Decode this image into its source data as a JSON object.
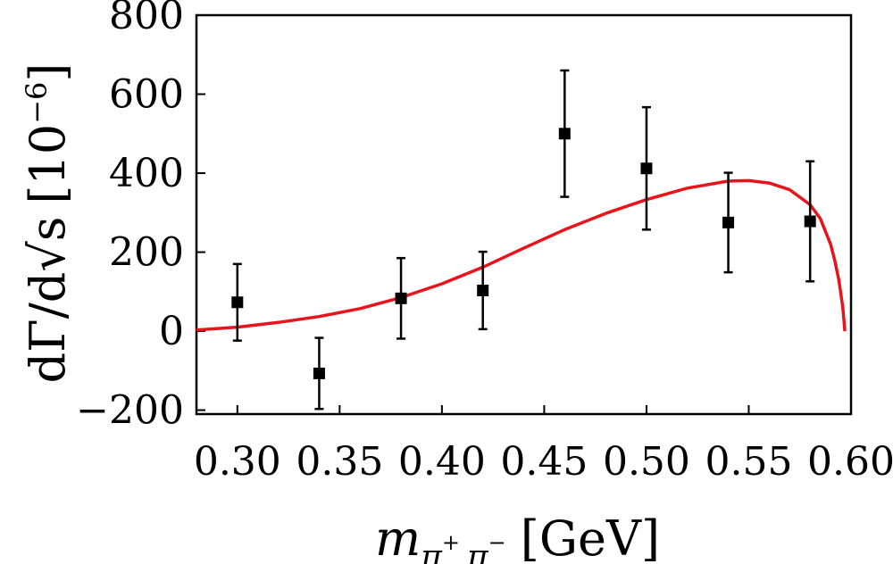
{
  "chart_data": {
    "type": "scatter",
    "xlabel": {
      "symbol": "m",
      "subscript": "π",
      "sup1": "+",
      "subscript2": "π",
      "sup2": "−",
      "units": "[GeV]"
    },
    "ylabel": {
      "text": "dΓ/d√s",
      "radicand": "s",
      "units_prefix": "[10",
      "units_exp": "−6",
      "units_suffix": "]"
    },
    "xlim": [
      0.28,
      0.6
    ],
    "ylim": [
      -210,
      800
    ],
    "x_ticks": [
      0.3,
      0.35,
      0.4,
      0.45,
      0.5,
      0.55,
      0.6
    ],
    "x_tick_labels": [
      "0.30",
      "0.35",
      "0.40",
      "0.45",
      "0.50",
      "0.55",
      "0.60"
    ],
    "y_ticks": [
      -200,
      0,
      200,
      400,
      600,
      800
    ],
    "y_tick_labels": [
      "−200",
      "0",
      "200",
      "400",
      "600",
      "800"
    ],
    "grid": false,
    "series": [
      {
        "type": "scatter-errorbar",
        "color": "#000000",
        "marker": "square",
        "points": [
          {
            "x": 0.3,
            "y": 73,
            "err": 97
          },
          {
            "x": 0.34,
            "y": -107,
            "err": 90
          },
          {
            "x": 0.38,
            "y": 83,
            "err": 102
          },
          {
            "x": 0.42,
            "y": 103,
            "err": 98
          },
          {
            "x": 0.46,
            "y": 500,
            "err": 160
          },
          {
            "x": 0.5,
            "y": 412,
            "err": 155
          },
          {
            "x": 0.54,
            "y": 275,
            "err": 126
          },
          {
            "x": 0.58,
            "y": 278,
            "err": 152
          }
        ]
      },
      {
        "type": "line",
        "color": "#e8141c",
        "x": [
          0.28,
          0.3,
          0.32,
          0.34,
          0.36,
          0.38,
          0.4,
          0.42,
          0.44,
          0.46,
          0.48,
          0.5,
          0.52,
          0.54,
          0.55,
          0.56,
          0.57,
          0.58,
          0.585,
          0.59,
          0.592,
          0.594,
          0.596,
          0.597
        ],
        "y": [
          3,
          10,
          22,
          37,
          57,
          85,
          120,
          162,
          210,
          257,
          298,
          333,
          362,
          380,
          381,
          375,
          358,
          320,
          285,
          220,
          180,
          130,
          60,
          0
        ]
      }
    ]
  }
}
